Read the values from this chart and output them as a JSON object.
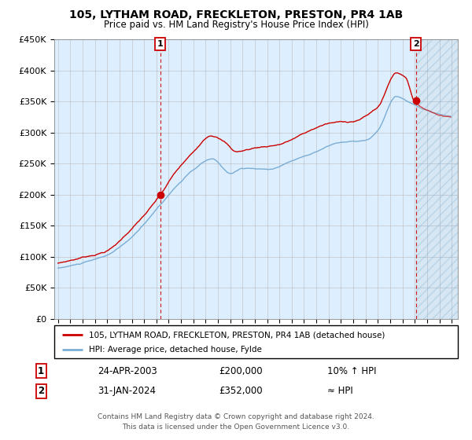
{
  "title": "105, LYTHAM ROAD, FRECKLETON, PRESTON, PR4 1AB",
  "subtitle": "Price paid vs. HM Land Registry's House Price Index (HPI)",
  "legend_line1": "105, LYTHAM ROAD, FRECKLETON, PRESTON, PR4 1AB (detached house)",
  "legend_line2": "HPI: Average price, detached house, Fylde",
  "sale1_date": "24-APR-2003",
  "sale1_price": "£200,000",
  "sale1_hpi": "10% ↑ HPI",
  "sale2_date": "31-JAN-2024",
  "sale2_price": "£352,000",
  "sale2_hpi": "≈ HPI",
  "footer1": "Contains HM Land Registry data © Crown copyright and database right 2024.",
  "footer2": "This data is licensed under the Open Government Licence v3.0.",
  "red_color": "#cc0000",
  "blue_color": "#7aadd4",
  "bg_color": "#ddeeff",
  "grid_color": "#bbbbbb",
  "ylim": [
    0,
    450000
  ],
  "yticks": [
    0,
    50000,
    100000,
    150000,
    200000,
    250000,
    300000,
    350000,
    400000,
    450000
  ],
  "sale1_x": 2003.3,
  "sale1_y": 200000,
  "sale2_x": 2024.08,
  "sale2_y": 352000,
  "future_start_x": 2024.08,
  "xlim_start": 1994.7,
  "xlim_end": 2027.5
}
